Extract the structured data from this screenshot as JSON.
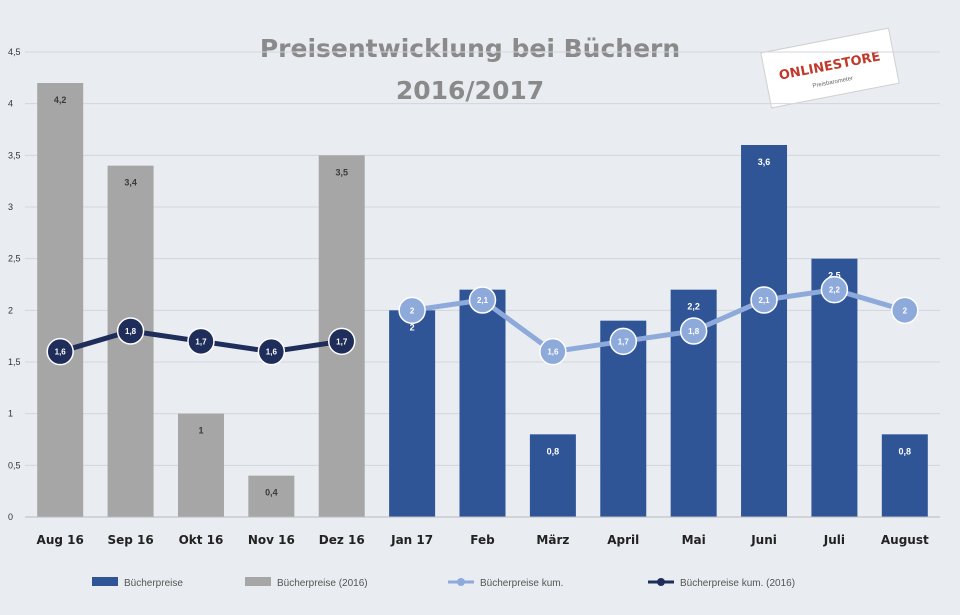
{
  "chart_data": {
    "type": "bar",
    "title_lines": [
      "Preisentwicklung bei Büchern",
      "2016/2017"
    ],
    "categories": [
      "Aug 16",
      "Sep 16",
      "Okt 16",
      "Nov 16",
      "Dez 16",
      "Jan 17",
      "Feb",
      "März",
      "April",
      "Mai",
      "Juni",
      "Juli",
      "August"
    ],
    "ylim": [
      0,
      4.5
    ],
    "yticks": [
      "0",
      "0,5",
      "1",
      "1,5",
      "2",
      "2,5",
      "3",
      "3,5",
      "4",
      "4,5"
    ],
    "grid": true,
    "legend_position": "bottom",
    "series": [
      {
        "name": "Bücherpreise",
        "kind": "bar",
        "color": "#2f5597",
        "values": [
          null,
          null,
          null,
          null,
          null,
          2.0,
          2.2,
          0.8,
          1.9,
          2.2,
          3.6,
          2.5,
          0.8
        ],
        "labels": [
          "",
          "",
          "",
          "",
          "",
          "2",
          "2,2",
          "0,8",
          "1,9",
          "2,2",
          "3,6",
          "2,5",
          "0,8"
        ]
      },
      {
        "name": "Bücherpreise (2016)",
        "kind": "bar",
        "color": "#a6a6a6",
        "values": [
          4.2,
          3.4,
          1.0,
          0.4,
          3.5,
          null,
          null,
          null,
          null,
          null,
          null,
          null,
          null
        ],
        "labels": [
          "4,2",
          "3,4",
          "1",
          "0,4",
          "3,5",
          "",
          "",
          "",
          "",
          "",
          "",
          "",
          ""
        ]
      },
      {
        "name": "Bücherpreise kum.",
        "kind": "line",
        "color": "#8eaadb",
        "values": [
          null,
          null,
          null,
          null,
          null,
          2.0,
          2.1,
          1.6,
          1.7,
          1.8,
          2.1,
          2.2,
          2.0
        ],
        "labels": [
          "",
          "",
          "",
          "",
          "",
          "2",
          "2,1",
          "1,6",
          "1,7",
          "1,8",
          "2,1",
          "2,2",
          "2"
        ]
      },
      {
        "name": "Bücherpreise kum. (2016)",
        "kind": "line",
        "color": "#1f2d5a",
        "values": [
          1.6,
          1.8,
          1.7,
          1.6,
          1.7,
          null,
          null,
          null,
          null,
          null,
          null,
          null,
          null
        ],
        "labels": [
          "1,6",
          "1,8",
          "1,7",
          "1,6",
          "1,7",
          "",
          "",
          "",
          "",
          "",
          "",
          "",
          ""
        ]
      }
    ]
  },
  "logo": {
    "name": "ONLINESTORE",
    "subtitle": "Preisbarometer"
  }
}
